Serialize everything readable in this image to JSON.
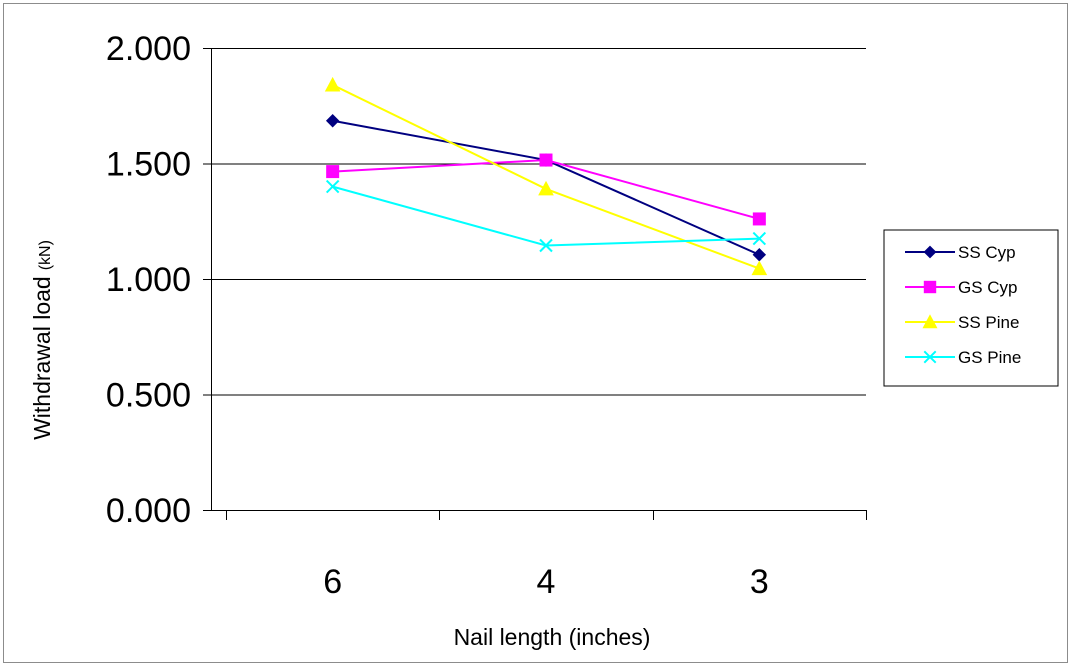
{
  "chart_data": {
    "type": "line",
    "categories": [
      "6",
      "4",
      "3"
    ],
    "ylabel": "Withdrawal load",
    "ylabel_unit": "(kN)",
    "xlabel": "Nail length (inches)",
    "ylim": [
      0,
      2
    ],
    "yticks": [
      "0.000",
      "0.500",
      "1.000",
      "1.500",
      "2.000"
    ],
    "ytick_values": [
      0,
      0.5,
      1.0,
      1.5,
      2.0
    ],
    "grid": true,
    "legend_position": "right",
    "series": [
      {
        "name": "SS Cyp",
        "values": [
          1.685,
          1.515,
          1.105
        ],
        "color": "#000080",
        "marker": "diamond"
      },
      {
        "name": "GS Cyp",
        "values": [
          1.465,
          1.515,
          1.26
        ],
        "color": "#ff00ff",
        "marker": "square"
      },
      {
        "name": "SS Pine",
        "values": [
          1.84,
          1.39,
          1.045
        ],
        "color": "#ffff00",
        "marker": "triangle"
      },
      {
        "name": "GS Pine",
        "values": [
          1.4,
          1.145,
          1.175
        ],
        "color": "#00ffff",
        "marker": "x"
      }
    ]
  }
}
